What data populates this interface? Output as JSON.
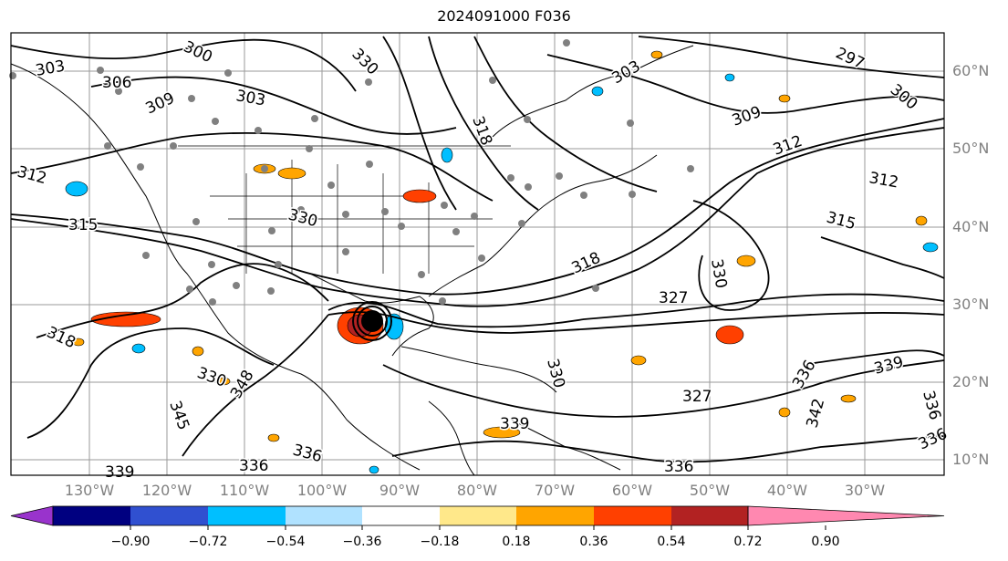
{
  "title": "2024091000 F036",
  "lat_labels": [
    "60°N",
    "50°N",
    "40°N",
    "30°N",
    "20°N",
    "10°N"
  ],
  "lon_labels": [
    "130°W",
    "120°W",
    "110°W",
    "100°W",
    "90°W",
    "80°W",
    "70°W",
    "60°W",
    "50°W",
    "40°W",
    "30°W"
  ],
  "contour_labels": [
    "303",
    "306",
    "309",
    "300",
    "303",
    "312",
    "315",
    "318",
    "330",
    "327",
    "330",
    "336",
    "339",
    "345",
    "348",
    "330",
    "336",
    "336",
    "297",
    "300",
    "309",
    "318",
    "312",
    "315",
    "330",
    "327",
    "336",
    "339",
    "342",
    "336",
    "330",
    "318",
    "312",
    "336",
    "339",
    "303"
  ],
  "colorbar": {
    "ticks": [
      "−0.90",
      "−0.72",
      "−0.54",
      "−0.36",
      "−0.18",
      "0.18",
      "0.36",
      "0.54",
      "0.72",
      "0.90"
    ],
    "colors": [
      "#9933cc",
      "#000080",
      "#3050d0",
      "#00bfff",
      "#b0e2ff",
      "#ffffff",
      "#ffe88a",
      "#ffa500",
      "#ff4000",
      "#b22222",
      "#ff88b0"
    ]
  }
}
